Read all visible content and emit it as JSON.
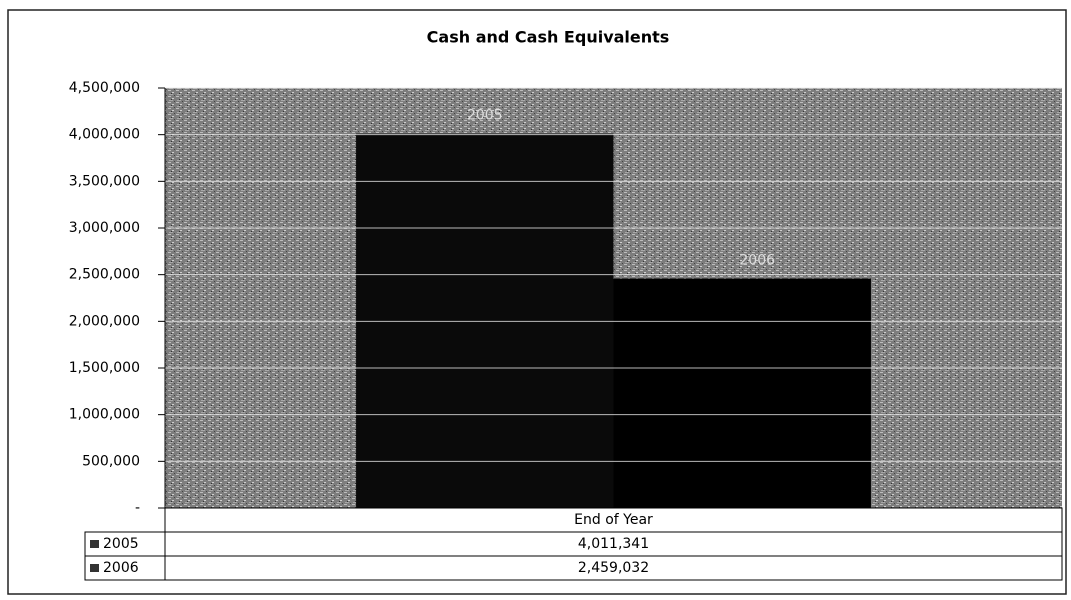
{
  "chart_data": {
    "type": "bar",
    "title": "Cash and Cash Equivalents",
    "categories": [
      "End of Year"
    ],
    "series": [
      {
        "name": "2005",
        "color": "#0a0a0a",
        "values": [
          4011341
        ],
        "value_labels": [
          "4,011,341"
        ]
      },
      {
        "name": "2006",
        "color": "#000000",
        "values": [
          2459032
        ],
        "value_labels": [
          "2,459,032"
        ]
      }
    ],
    "ylim": [
      0,
      4500000
    ],
    "yticks": [
      {
        "value": 0,
        "label": "-"
      },
      {
        "value": 500000,
        "label": "500,000"
      },
      {
        "value": 1000000,
        "label": "1,000,000"
      },
      {
        "value": 1500000,
        "label": "1,500,000"
      },
      {
        "value": 2000000,
        "label": "2,000,000"
      },
      {
        "value": 2500000,
        "label": "2,500,000"
      },
      {
        "value": 3000000,
        "label": "3,000,000"
      },
      {
        "value": 3500000,
        "label": "3,500,000"
      },
      {
        "value": 4000000,
        "label": "4,000,000"
      },
      {
        "value": 4500000,
        "label": "4,500,000"
      }
    ],
    "grid": true
  }
}
